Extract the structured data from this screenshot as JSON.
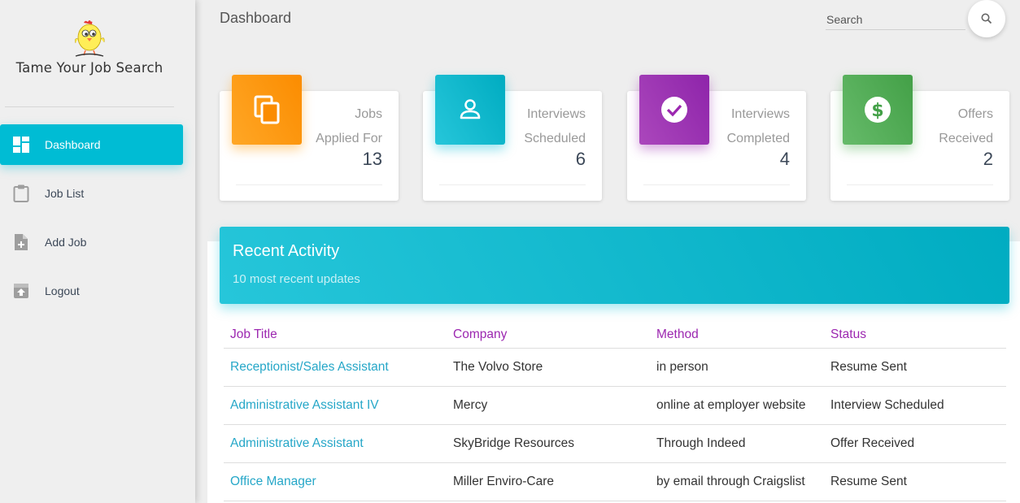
{
  "sidebar": {
    "logo_text": "Tame Your Job Search",
    "items": [
      {
        "label": "Dashboard",
        "icon": "dashboard-icon",
        "active": true
      },
      {
        "label": "Job List",
        "icon": "clipboard-icon",
        "active": false
      },
      {
        "label": "Add Job",
        "icon": "add-file-icon",
        "active": false
      },
      {
        "label": "Logout",
        "icon": "logout-icon",
        "active": false
      }
    ]
  },
  "header": {
    "title": "Dashboard",
    "search_placeholder": "Search"
  },
  "stats": [
    {
      "line1": "Jobs",
      "line2": "Applied For",
      "value": "13",
      "icon": "copy-icon",
      "color": "#fb8c00"
    },
    {
      "line1": "Interviews",
      "line2": "Scheduled",
      "value": "6",
      "icon": "person-icon",
      "color": "#00acc1"
    },
    {
      "line1": "Interviews",
      "line2": "Completed",
      "value": "4",
      "icon": "check-circle-icon",
      "color": "#8e24aa"
    },
    {
      "line1": "Offers",
      "line2": "Received",
      "value": "2",
      "icon": "dollar-icon",
      "color": "#43a047"
    }
  ],
  "activity": {
    "title": "Recent Activity",
    "subtitle": "10 most recent updates",
    "columns": [
      "Job Title",
      "Company",
      "Method",
      "Status"
    ],
    "rows": [
      [
        "Receptionist/Sales Assistant",
        "The Volvo Store",
        "in person",
        "Resume Sent"
      ],
      [
        "Administrative Assistant IV",
        "Mercy",
        "online at employer website",
        "Interview Scheduled"
      ],
      [
        "Administrative Assistant",
        "SkyBridge Resources",
        "Through Indeed",
        "Offer Received"
      ],
      [
        "Office Manager",
        "Miller Enviro-Care",
        "by email through Craigslist",
        "Resume Sent"
      ]
    ]
  },
  "colors": {
    "accent": "#00bcd4",
    "header_purple": "#9c27b0",
    "link": "#26a7c8"
  }
}
